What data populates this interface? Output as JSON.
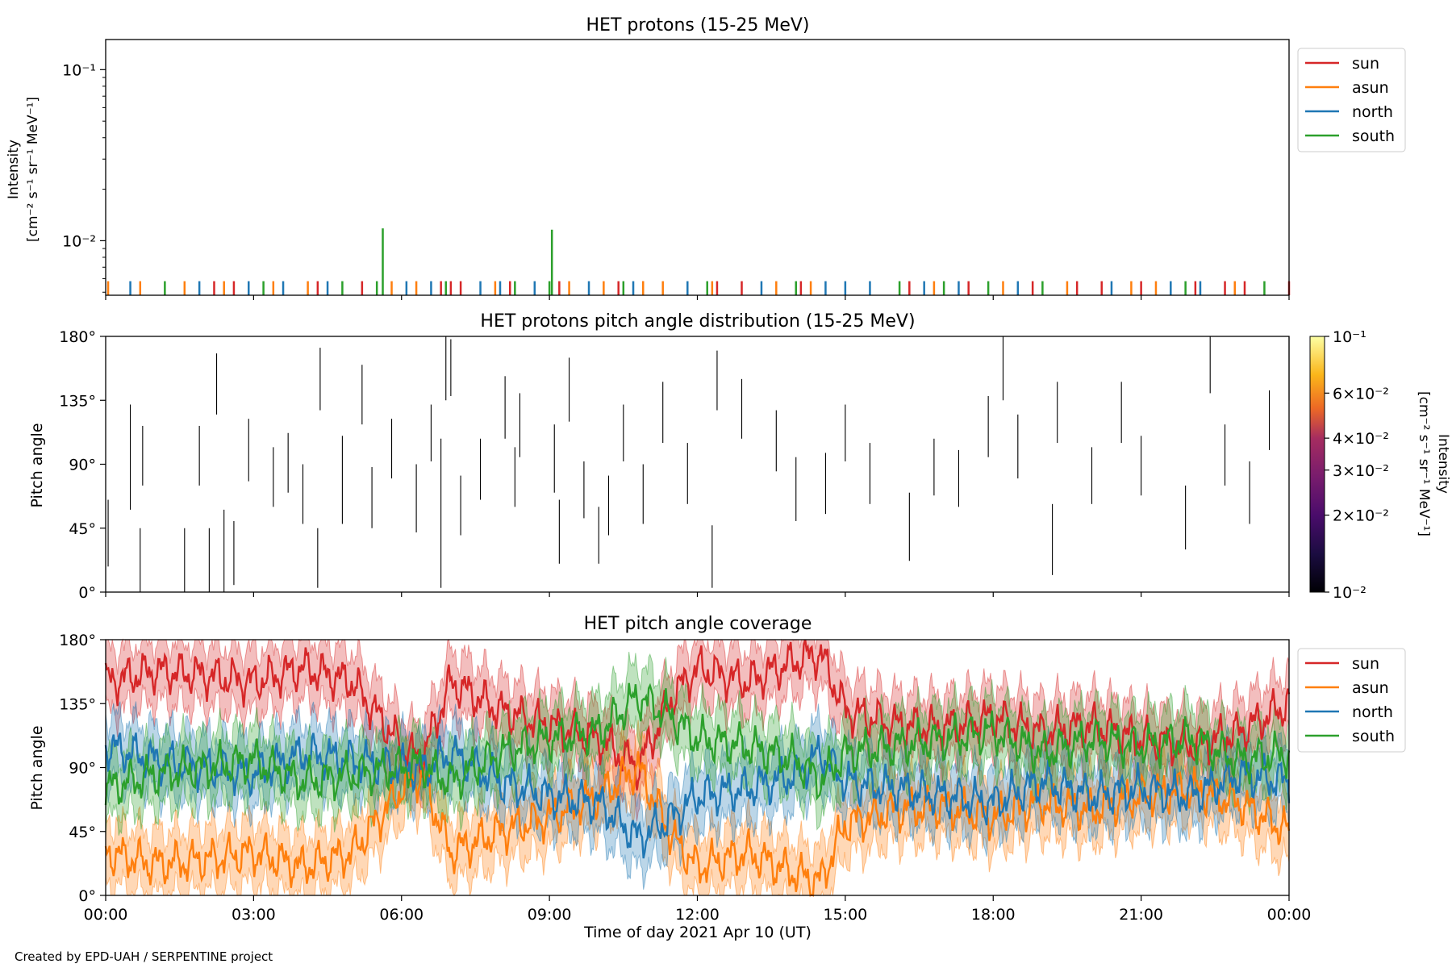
{
  "colors": {
    "sun": "#d62728",
    "asun": "#ff7f0e",
    "north": "#1f77b4",
    "south": "#2ca02c",
    "axes": "#000000"
  },
  "credit": "Created by EPD-UAH / SERPENTINE project",
  "chart_data": [
    {
      "type": "line",
      "panel": "intensity",
      "title": "HET protons (15-25 MeV)",
      "ylabel_line1": "Intensity",
      "ylabel_line2": "[cm⁻² s⁻¹ sr⁻¹ MeV⁻¹]",
      "yscale": "log",
      "ylim": [
        0.0048,
        0.15
      ],
      "yticks": [
        {
          "value": 0.1,
          "label": "10⁻¹"
        },
        {
          "value": 0.01,
          "label": "10⁻²"
        }
      ],
      "xlim": [
        0,
        24
      ],
      "legend": {
        "placement": "outside-right",
        "entries": [
          "sun",
          "asun",
          "north",
          "south"
        ]
      },
      "series": [
        {
          "name": "sun",
          "color_key": "sun",
          "spikes": [
            2.2,
            2.6,
            4.3,
            5.2,
            6.8,
            7.0,
            7.2,
            8.2,
            9.2,
            10.4,
            10.9,
            12.4,
            12.9,
            14.1,
            16.3,
            17.5,
            18.8,
            19.7,
            20.2,
            21.0,
            22.1,
            22.7,
            23.1,
            24.0
          ]
        },
        {
          "name": "asun",
          "color_key": "asun",
          "spikes": [
            0.05,
            0.7,
            1.6,
            2.4,
            3.4,
            4.1,
            5.8,
            6.3,
            7.9,
            9.4,
            10.1,
            10.9,
            11.3,
            12.3,
            13.6,
            14.3,
            16.8,
            18.2,
            19.5,
            20.8,
            21.3,
            22.9
          ]
        },
        {
          "name": "north",
          "color_key": "north",
          "spikes": [
            0.5,
            1.9,
            2.9,
            3.6,
            4.5,
            6.1,
            6.6,
            7.6,
            8.0,
            8.7,
            9.8,
            10.7,
            11.8,
            13.3,
            14.6,
            15.0,
            15.5,
            16.6,
            17.3,
            18.5,
            20.4,
            21.6,
            22.2
          ]
        },
        {
          "name": "south",
          "color_key": "south",
          "spikes": [
            1.2,
            3.2,
            4.8,
            5.5,
            6.9,
            8.3,
            9.0,
            10.5,
            12.2,
            14.0,
            16.1,
            17.0,
            17.9,
            19.0,
            21.9,
            23.5
          ],
          "peaks": [
            {
              "x": 5.62,
              "y": 0.0118
            },
            {
              "x": 9.05,
              "y": 0.0116
            }
          ]
        }
      ],
      "baseline_value": 0.0058
    },
    {
      "type": "heatmap",
      "panel": "pad",
      "title": "HET protons pitch angle distribution (15-25 MeV)",
      "ylabel": "Pitch angle",
      "ylim": [
        0,
        180
      ],
      "yticks": [
        {
          "value": 0,
          "label": "0°"
        },
        {
          "value": 45,
          "label": "45°"
        },
        {
          "value": 90,
          "label": "90°"
        },
        {
          "value": 135,
          "label": "135°"
        },
        {
          "value": 180,
          "label": "180°"
        }
      ],
      "xlim": [
        0,
        24
      ],
      "colorbar": {
        "label_line1": "Intensity",
        "label_line2": "[cm⁻² s⁻¹ sr⁻¹ MeV⁻¹]",
        "scale": "log",
        "range": [
          0.01,
          0.1
        ],
        "colormap": "inferno",
        "ticks": [
          {
            "value": 0.1,
            "label": "10⁻¹"
          },
          {
            "value": 0.06,
            "label": "6×10⁻²"
          },
          {
            "value": 0.04,
            "label": "4×10⁻²"
          },
          {
            "value": 0.03,
            "label": "3×10⁻²"
          },
          {
            "value": 0.02,
            "label": "2×10⁻²"
          },
          {
            "value": 0.01,
            "label": "10⁻²"
          }
        ]
      },
      "segments": [
        {
          "t": 0.05,
          "from": 18,
          "to": 65
        },
        {
          "t": 0.5,
          "from": 58,
          "to": 132
        },
        {
          "t": 0.7,
          "from": 0,
          "to": 45
        },
        {
          "t": 0.75,
          "from": 75,
          "to": 117
        },
        {
          "t": 1.6,
          "from": 0,
          "to": 45
        },
        {
          "t": 1.9,
          "from": 75,
          "to": 117
        },
        {
          "t": 2.1,
          "from": 0,
          "to": 45
        },
        {
          "t": 2.25,
          "from": 125,
          "to": 168
        },
        {
          "t": 2.4,
          "from": 0,
          "to": 58
        },
        {
          "t": 2.6,
          "from": 5,
          "to": 50
        },
        {
          "t": 2.9,
          "from": 78,
          "to": 122
        },
        {
          "t": 3.4,
          "from": 60,
          "to": 102
        },
        {
          "t": 3.7,
          "from": 70,
          "to": 112
        },
        {
          "t": 4.0,
          "from": 48,
          "to": 90
        },
        {
          "t": 4.3,
          "from": 3,
          "to": 45
        },
        {
          "t": 4.35,
          "from": 128,
          "to": 172
        },
        {
          "t": 4.8,
          "from": 48,
          "to": 110
        },
        {
          "t": 5.2,
          "from": 118,
          "to": 160
        },
        {
          "t": 5.4,
          "from": 45,
          "to": 88
        },
        {
          "t": 5.8,
          "from": 80,
          "to": 122
        },
        {
          "t": 6.3,
          "from": 42,
          "to": 90
        },
        {
          "t": 6.6,
          "from": 92,
          "to": 132
        },
        {
          "t": 6.8,
          "from": 3,
          "to": 108
        },
        {
          "t": 6.9,
          "from": 135,
          "to": 180
        },
        {
          "t": 7.0,
          "from": 138,
          "to": 178
        },
        {
          "t": 7.2,
          "from": 40,
          "to": 82
        },
        {
          "t": 7.6,
          "from": 65,
          "to": 108
        },
        {
          "t": 8.1,
          "from": 108,
          "to": 152
        },
        {
          "t": 8.3,
          "from": 60,
          "to": 102
        },
        {
          "t": 8.4,
          "from": 95,
          "to": 140
        },
        {
          "t": 9.1,
          "from": 70,
          "to": 118
        },
        {
          "t": 9.2,
          "from": 20,
          "to": 65
        },
        {
          "t": 9.4,
          "from": 120,
          "to": 165
        },
        {
          "t": 9.7,
          "from": 52,
          "to": 92
        },
        {
          "t": 10.0,
          "from": 20,
          "to": 60
        },
        {
          "t": 10.2,
          "from": 40,
          "to": 82
        },
        {
          "t": 10.5,
          "from": 92,
          "to": 132
        },
        {
          "t": 10.9,
          "from": 48,
          "to": 90
        },
        {
          "t": 11.3,
          "from": 105,
          "to": 148
        },
        {
          "t": 11.8,
          "from": 62,
          "to": 105
        },
        {
          "t": 12.3,
          "from": 3,
          "to": 47
        },
        {
          "t": 12.4,
          "from": 128,
          "to": 170
        },
        {
          "t": 12.9,
          "from": 108,
          "to": 150
        },
        {
          "t": 13.6,
          "from": 85,
          "to": 128
        },
        {
          "t": 14.0,
          "from": 50,
          "to": 95
        },
        {
          "t": 14.6,
          "from": 55,
          "to": 98
        },
        {
          "t": 15.0,
          "from": 92,
          "to": 132
        },
        {
          "t": 15.5,
          "from": 62,
          "to": 105
        },
        {
          "t": 16.3,
          "from": 22,
          "to": 70
        },
        {
          "t": 16.8,
          "from": 68,
          "to": 108
        },
        {
          "t": 17.3,
          "from": 60,
          "to": 100
        },
        {
          "t": 17.9,
          "from": 95,
          "to": 138
        },
        {
          "t": 18.2,
          "from": 135,
          "to": 180
        },
        {
          "t": 18.5,
          "from": 80,
          "to": 125
        },
        {
          "t": 19.2,
          "from": 12,
          "to": 62
        },
        {
          "t": 19.3,
          "from": 105,
          "to": 148
        },
        {
          "t": 20.0,
          "from": 62,
          "to": 102
        },
        {
          "t": 20.6,
          "from": 105,
          "to": 148
        },
        {
          "t": 21.0,
          "from": 68,
          "to": 110
        },
        {
          "t": 21.9,
          "from": 30,
          "to": 75
        },
        {
          "t": 22.4,
          "from": 140,
          "to": 180
        },
        {
          "t": 22.7,
          "from": 75,
          "to": 118
        },
        {
          "t": 23.2,
          "from": 48,
          "to": 92
        },
        {
          "t": 23.6,
          "from": 100,
          "to": 142
        },
        {
          "t": 24.0,
          "from": 135,
          "to": 180
        }
      ]
    },
    {
      "type": "line",
      "panel": "coverage",
      "title": "HET pitch angle coverage",
      "ylabel": "Pitch angle",
      "xlabel": "Time of day 2021 Apr 10 (UT)",
      "ylim": [
        0,
        180
      ],
      "yticks": [
        {
          "value": 0,
          "label": "0°"
        },
        {
          "value": 45,
          "label": "45°"
        },
        {
          "value": 90,
          "label": "90°"
        },
        {
          "value": 135,
          "label": "135°"
        },
        {
          "value": 180,
          "label": "180°"
        }
      ],
      "xlim": [
        0,
        24
      ],
      "xticks": [
        {
          "value": 0,
          "label": "00:00"
        },
        {
          "value": 3,
          "label": "03:00"
        },
        {
          "value": 6,
          "label": "06:00"
        },
        {
          "value": 9,
          "label": "09:00"
        },
        {
          "value": 12,
          "label": "12:00"
        },
        {
          "value": 15,
          "label": "15:00"
        },
        {
          "value": 18,
          "label": "18:00"
        },
        {
          "value": 21,
          "label": "21:00"
        },
        {
          "value": 24,
          "label": "00:00"
        }
      ],
      "band_halfwidth": 22,
      "legend": {
        "placement": "outside-right",
        "entries": [
          "sun",
          "asun",
          "north",
          "south"
        ]
      },
      "series": [
        {
          "name": "sun",
          "color_key": "sun",
          "x": [
            0,
            1,
            2,
            3,
            4,
            5,
            6,
            6.4,
            7,
            8,
            9,
            10,
            10.8,
            11.5,
            12,
            13,
            14,
            14.5,
            15,
            16,
            17,
            18,
            19,
            20,
            21,
            22,
            23,
            24
          ],
          "y": [
            150,
            158,
            155,
            150,
            160,
            150,
            105,
            95,
            150,
            130,
            120,
            110,
            90,
            140,
            160,
            150,
            165,
            170,
            130,
            120,
            118,
            125,
            115,
            120,
            110,
            105,
            115,
            135
          ]
        },
        {
          "name": "asun",
          "color_key": "asun",
          "x": [
            0,
            1,
            2,
            3,
            4,
            5,
            6,
            6.4,
            7,
            8,
            9,
            10,
            10.8,
            11.5,
            12,
            13,
            14,
            14.5,
            15,
            16,
            17,
            18,
            19,
            20,
            21,
            22,
            23,
            24
          ],
          "y": [
            30,
            22,
            25,
            30,
            20,
            30,
            75,
            85,
            30,
            45,
            55,
            70,
            90,
            40,
            20,
            30,
            15,
            10,
            50,
            60,
            62,
            55,
            65,
            60,
            70,
            75,
            65,
            45
          ]
        },
        {
          "name": "north",
          "color_key": "north",
          "x": [
            0,
            1,
            2,
            3,
            4,
            5,
            6,
            6.4,
            7,
            8,
            9,
            10,
            10.8,
            11.5,
            12,
            13,
            14,
            14.5,
            15,
            16,
            17,
            18,
            19,
            20,
            21,
            22,
            23,
            24
          ],
          "y": [
            105,
            95,
            90,
            85,
            100,
            95,
            90,
            88,
            100,
            80,
            70,
            65,
            40,
            55,
            70,
            75,
            85,
            100,
            80,
            75,
            70,
            65,
            80,
            70,
            75,
            70,
            85,
            80
          ]
        },
        {
          "name": "south",
          "color_key": "south",
          "x": [
            0,
            1,
            2,
            3,
            4,
            5,
            6,
            6.4,
            7,
            8,
            9,
            10,
            10.8,
            11.5,
            12,
            13,
            14,
            14.5,
            15,
            16,
            17,
            18,
            19,
            20,
            21,
            22,
            23,
            24
          ],
          "y": [
            75,
            85,
            90,
            95,
            80,
            85,
            90,
            92,
            80,
            100,
            110,
            115,
            140,
            125,
            110,
            105,
            95,
            80,
            100,
            105,
            110,
            115,
            100,
            110,
            105,
            110,
            95,
            100
          ]
        }
      ]
    }
  ]
}
